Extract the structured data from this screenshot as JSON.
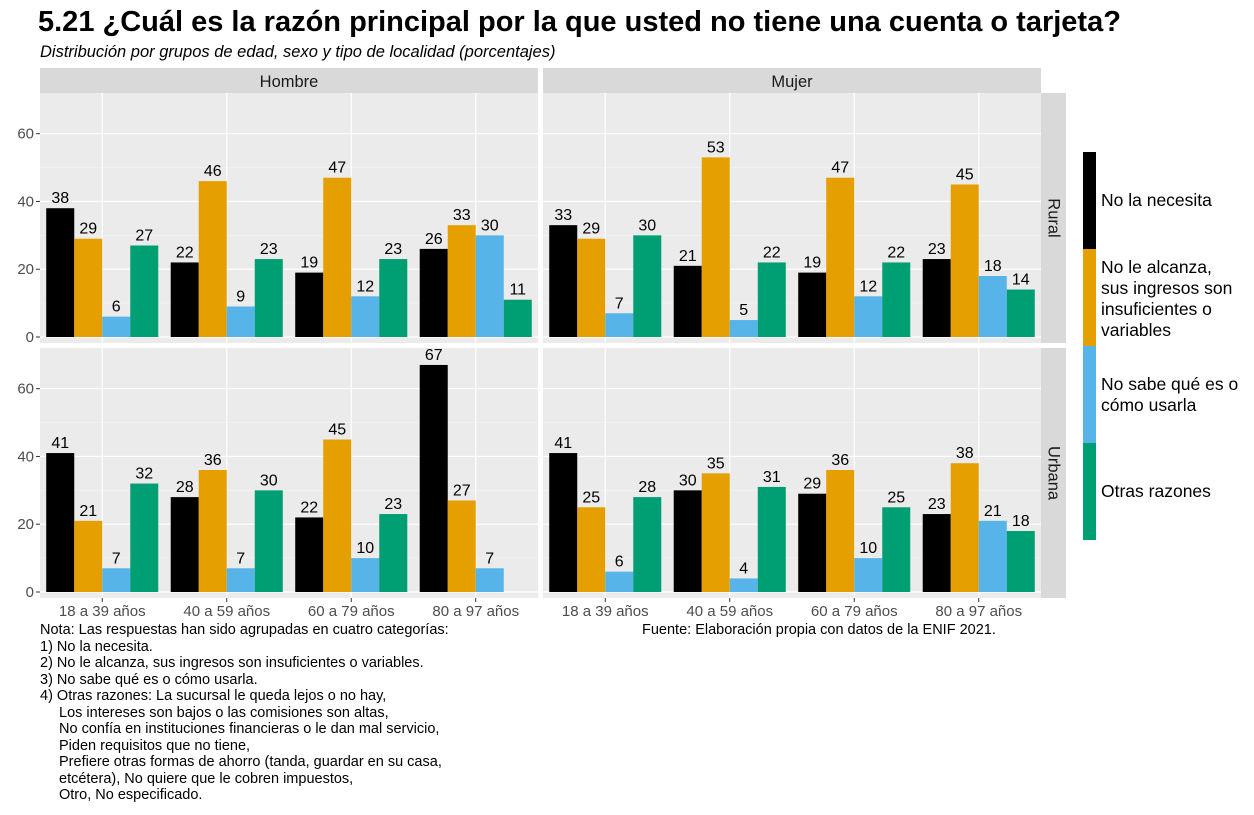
{
  "title": "5.21 ¿Cuál es la razón principal por la que usted no tiene una cuenta o tarjeta?",
  "subtitle": "Distribución por grupos de edad, sexo y tipo de localidad (porcentajes)",
  "chart_data": {
    "type": "bar",
    "facet_columns": [
      "Hombre",
      "Mujer"
    ],
    "facet_rows": [
      "Rural",
      "Urbana"
    ],
    "categories": [
      "18 a 39 años",
      "40 a 59 años",
      "60 a 79 años",
      "80 a 97 años"
    ],
    "y_ticks": [
      "0",
      "20",
      "40",
      "60"
    ],
    "ylim": [
      0,
      72
    ],
    "grid": true,
    "legend_position": "right",
    "series": [
      {
        "name": "No la necesita",
        "color": "#000000"
      },
      {
        "name": "No le alcanza, sus ingresos son insuficientes o variables",
        "color": "#E69F00"
      },
      {
        "name": "No sabe qué es o cómo usarla",
        "color": "#56B4E9"
      },
      {
        "name": "Otras razones",
        "color": "#009E73"
      }
    ],
    "panels": [
      {
        "column": "Hombre",
        "row": "Rural",
        "values": [
          [
            38,
            29,
            6,
            27
          ],
          [
            22,
            46,
            9,
            23
          ],
          [
            19,
            47,
            12,
            23
          ],
          [
            26,
            33,
            30,
            11
          ]
        ]
      },
      {
        "column": "Mujer",
        "row": "Rural",
        "values": [
          [
            33,
            29,
            7,
            30
          ],
          [
            21,
            53,
            5,
            22
          ],
          [
            19,
            47,
            12,
            22
          ],
          [
            23,
            45,
            18,
            14
          ]
        ]
      },
      {
        "column": "Hombre",
        "row": "Urbana",
        "values": [
          [
            41,
            21,
            7,
            32
          ],
          [
            28,
            36,
            7,
            30
          ],
          [
            22,
            45,
            10,
            23
          ],
          [
            67,
            27,
            7,
            null
          ]
        ]
      },
      {
        "column": "Mujer",
        "row": "Urbana",
        "values": [
          [
            41,
            25,
            6,
            28
          ],
          [
            30,
            35,
            4,
            31
          ],
          [
            29,
            36,
            10,
            25
          ],
          [
            23,
            38,
            21,
            18
          ]
        ]
      }
    ]
  },
  "legend": {
    "items": [
      {
        "label": "No la necesita",
        "color": "#000000"
      },
      {
        "label": "No le alcanza,\nsus ingresos son\ninsuficientes o\nvariables",
        "color": "#E69F00"
      },
      {
        "label": "No sabe qué es o\ncómo usarla",
        "color": "#56B4E9"
      },
      {
        "label": "Otras razones",
        "color": "#009E73"
      }
    ]
  },
  "note": {
    "lines": [
      "Nota: Las respuestas han sido agrupadas en cuatro categorías:",
      "1) No la necesita.",
      "2) No le alcanza, sus ingresos son insuficientes o variables.",
      "3) No sabe qué es o cómo usarla.",
      "4) Otras razones: La sucursal le queda lejos o no hay,"
    ],
    "indented_lines": [
      "Los intereses son bajos o las comisiones son altas,",
      "No confía en instituciones financieras o le dan mal servicio,",
      "Piden requisitos que no tiene,",
      "Prefiere otras formas de ahorro (tanda, guardar en su casa,",
      "etcétera), No quiere que le cobren impuestos,",
      "Otro, No especificado."
    ]
  },
  "source": "Fuente: Elaboración propia con datos de la ENIF 2021."
}
